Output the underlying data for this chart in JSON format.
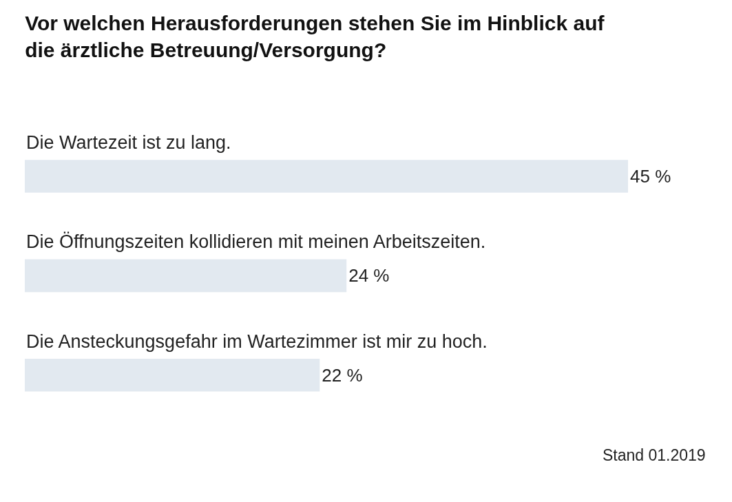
{
  "chart_data": {
    "type": "bar",
    "orientation": "horizontal",
    "title": "Vor welchen Herausforderungen stehen Sie im Hinblick auf die ärztliche Betreuung/Versorgung?",
    "categories": [
      "Die Wartezeit ist zu lang.",
      "Die Öffnungszeiten kollidieren mit meinen Arbeitszeiten.",
      "Die Ansteckungsgefahr im Wartezimmer ist mir zu hoch."
    ],
    "values": [
      45,
      24,
      22
    ],
    "value_labels": [
      "45 %",
      "24 %",
      "22 %"
    ],
    "color": "#e2e9f0",
    "annotations": [
      "Stand 01.2019"
    ],
    "grid": false,
    "legend": false
  }
}
